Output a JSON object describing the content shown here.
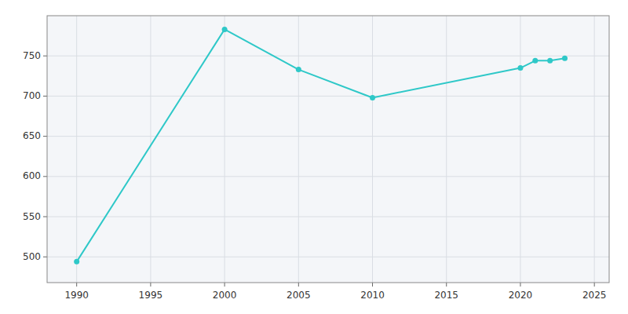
{
  "chart_data": {
    "type": "line",
    "x": [
      1990,
      2000,
      2005,
      2010,
      2020,
      2021,
      2022,
      2023
    ],
    "values": [
      494,
      783,
      733,
      698,
      735,
      744,
      744,
      747
    ],
    "color": "#2ec8c8",
    "marker": "circle",
    "xlim": [
      1988,
      2026
    ],
    "ylim": [
      468,
      800
    ],
    "xticks": [
      1990,
      1995,
      2000,
      2005,
      2010,
      2015,
      2020,
      2025
    ],
    "yticks": [
      500,
      550,
      600,
      650,
      700,
      750
    ],
    "grid": true
  }
}
